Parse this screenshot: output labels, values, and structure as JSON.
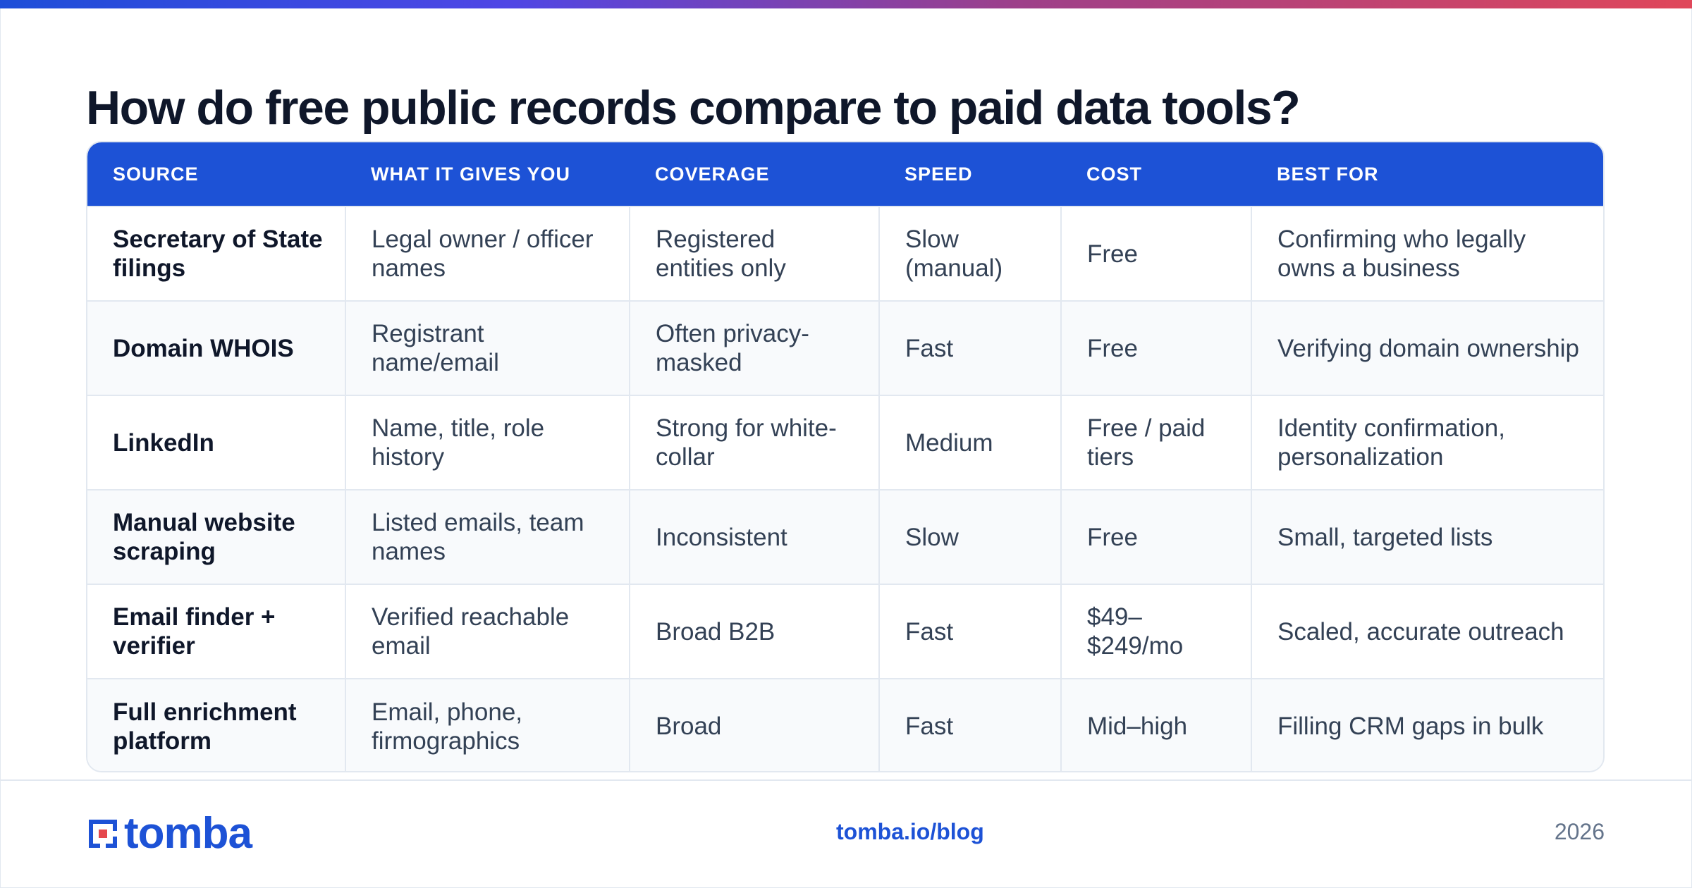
{
  "title": "How do free public records compare to paid data tools?",
  "table": {
    "headers": [
      "SOURCE",
      "WHAT IT GIVES YOU",
      "COVERAGE",
      "SPEED",
      "COST",
      "BEST FOR"
    ],
    "rows": [
      [
        "Secretary of State filings",
        "Legal owner / officer names",
        "Registered entities only",
        "Slow (manual)",
        "Free",
        "Confirming who legally owns a business"
      ],
      [
        "Domain WHOIS",
        "Registrant name/email",
        "Often privacy-masked",
        "Fast",
        "Free",
        "Verifying domain ownership"
      ],
      [
        "LinkedIn",
        "Name, title, role history",
        "Strong for white-collar",
        "Medium",
        "Free / paid tiers",
        "Identity confirmation, personalization"
      ],
      [
        "Manual website scraping",
        "Listed emails, team names",
        "Inconsistent",
        "Slow",
        "Free",
        "Small, targeted lists"
      ],
      [
        "Email finder + verifier",
        "Verified reachable email",
        "Broad B2B",
        "Fast",
        "$49–$249/mo",
        "Scaled, accurate outreach"
      ],
      [
        "Full enrichment platform",
        "Email, phone, firmographics",
        "Broad",
        "Fast",
        "Mid–high",
        "Filling CRM gaps in bulk"
      ]
    ]
  },
  "footer": {
    "logo_text": "tomba",
    "link": "tomba.io/blog",
    "year": "2026"
  },
  "colors": {
    "accent": "#1d52d6",
    "logo_red": "#e5484d"
  },
  "icons": {
    "logo": "tomba-logo-icon"
  }
}
